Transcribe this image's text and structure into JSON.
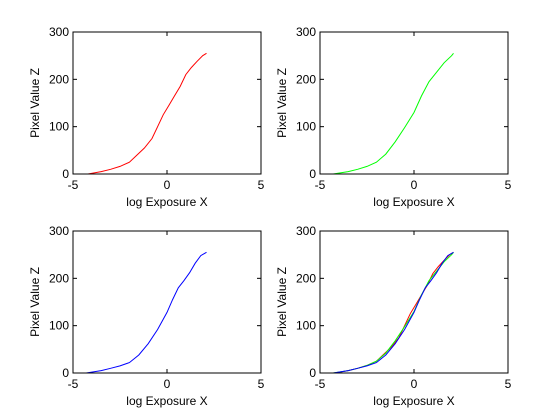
{
  "colors": {
    "red": "#ff0000",
    "green": "#00ff00",
    "blue": "#0000ff",
    "axes": "#000000",
    "background": "#ffffff"
  },
  "chart_data": [
    {
      "type": "line",
      "xlabel": "log Exposure X",
      "ylabel": "Pixel Value Z",
      "xlim": [
        -5,
        5
      ],
      "ylim": [
        0,
        300
      ],
      "xticks": [
        "-5",
        "0",
        "5"
      ],
      "yticks": [
        "0",
        "100",
        "200",
        "300"
      ],
      "grid": false,
      "series": [
        {
          "color": "#ff0000",
          "x": [
            -4.2,
            -3.5,
            -3.0,
            -2.5,
            -2.0,
            -1.6,
            -1.2,
            -0.8,
            -0.5,
            -0.2,
            0.1,
            0.4,
            0.7,
            1.0,
            1.3,
            1.6,
            1.9,
            2.1
          ],
          "y": [
            0,
            5,
            10,
            16,
            25,
            40,
            55,
            75,
            100,
            125,
            145,
            165,
            185,
            210,
            225,
            238,
            250,
            255
          ]
        }
      ]
    },
    {
      "type": "line",
      "xlabel": "log Exposure X",
      "ylabel": "Pixel Value Z",
      "xlim": [
        -5,
        5
      ],
      "ylim": [
        0,
        300
      ],
      "xticks": [
        "-5",
        "0",
        "5"
      ],
      "yticks": [
        "0",
        "100",
        "200",
        "300"
      ],
      "grid": false,
      "series": [
        {
          "color": "#00ff00",
          "x": [
            -4.3,
            -3.5,
            -3.0,
            -2.5,
            -2.0,
            -1.5,
            -1.0,
            -0.5,
            0.0,
            0.4,
            0.8,
            1.2,
            1.6,
            2.0,
            2.1
          ],
          "y": [
            0,
            5,
            10,
            16,
            25,
            42,
            68,
            98,
            130,
            165,
            195,
            215,
            235,
            250,
            255
          ]
        }
      ]
    },
    {
      "type": "line",
      "xlabel": "log Exposure X",
      "ylabel": "Pixel Value Z",
      "xlim": [
        -5,
        5
      ],
      "ylim": [
        0,
        300
      ],
      "xticks": [
        "-5",
        "0",
        "5"
      ],
      "yticks": [
        "0",
        "100",
        "200",
        "300"
      ],
      "grid": false,
      "series": [
        {
          "color": "#0000ff",
          "x": [
            -4.3,
            -3.5,
            -3.0,
            -2.5,
            -2.0,
            -1.5,
            -1.0,
            -0.5,
            0.0,
            0.3,
            0.6,
            0.9,
            1.2,
            1.5,
            1.8,
            2.1
          ],
          "y": [
            0,
            5,
            10,
            15,
            22,
            38,
            62,
            92,
            128,
            155,
            180,
            195,
            212,
            232,
            248,
            255
          ]
        }
      ]
    },
    {
      "type": "line",
      "xlabel": "log Exposure X",
      "ylabel": "Pixel Value Z",
      "xlim": [
        -5,
        5
      ],
      "ylim": [
        0,
        300
      ],
      "xticks": [
        "-5",
        "0",
        "5"
      ],
      "yticks": [
        "0",
        "100",
        "200",
        "300"
      ],
      "grid": false,
      "series": [
        {
          "color": "#ff0000",
          "x": [
            -4.2,
            -3.5,
            -3.0,
            -2.5,
            -2.0,
            -1.6,
            -1.2,
            -0.8,
            -0.5,
            -0.2,
            0.1,
            0.4,
            0.7,
            1.0,
            1.3,
            1.6,
            1.9,
            2.1
          ],
          "y": [
            0,
            5,
            10,
            16,
            25,
            40,
            55,
            75,
            100,
            125,
            145,
            165,
            185,
            210,
            225,
            238,
            250,
            255
          ]
        },
        {
          "color": "#00ff00",
          "x": [
            -4.3,
            -3.5,
            -3.0,
            -2.5,
            -2.0,
            -1.5,
            -1.0,
            -0.5,
            0.0,
            0.4,
            0.8,
            1.2,
            1.6,
            2.0,
            2.1
          ],
          "y": [
            0,
            5,
            10,
            16,
            25,
            42,
            68,
            98,
            130,
            165,
            195,
            215,
            235,
            250,
            255
          ]
        },
        {
          "color": "#0000ff",
          "x": [
            -4.3,
            -3.5,
            -3.0,
            -2.5,
            -2.0,
            -1.5,
            -1.0,
            -0.5,
            0.0,
            0.3,
            0.6,
            0.9,
            1.2,
            1.5,
            1.8,
            2.1
          ],
          "y": [
            0,
            5,
            10,
            15,
            22,
            38,
            62,
            92,
            128,
            155,
            180,
            195,
            212,
            232,
            248,
            255
          ]
        }
      ]
    }
  ]
}
